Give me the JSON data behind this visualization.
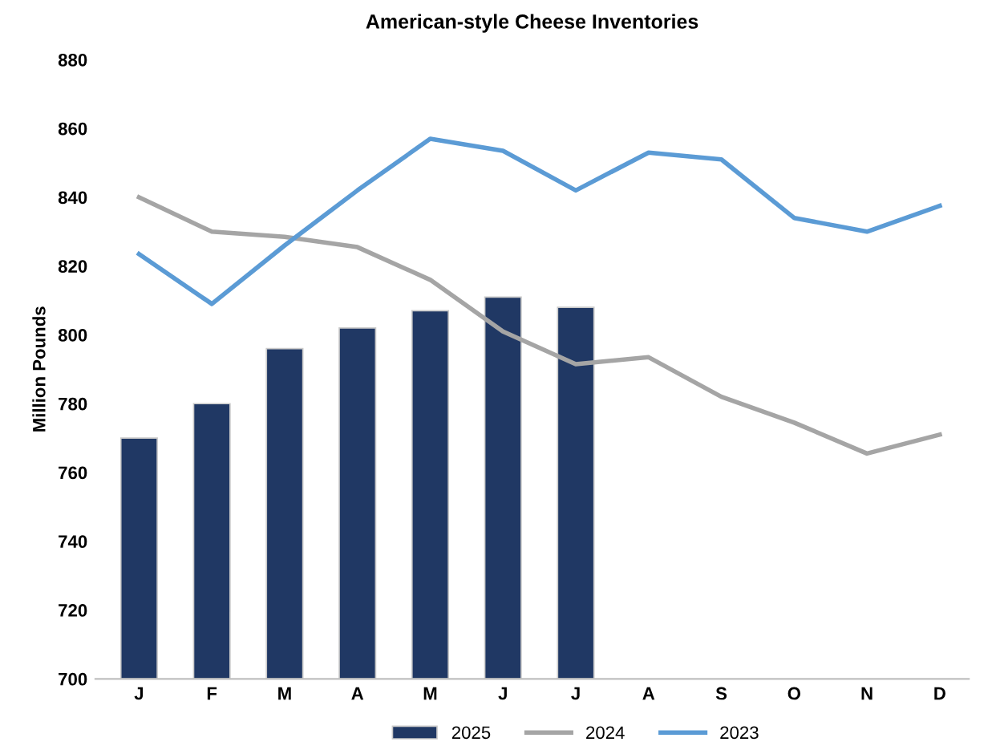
{
  "chart_data": {
    "type": "bar",
    "title": "American-style Cheese Inventories",
    "ylabel": "Million Pounds",
    "categories": [
      "J",
      "F",
      "M",
      "A",
      "M",
      "J",
      "J",
      "A",
      "S",
      "O",
      "N",
      "D"
    ],
    "series": [
      {
        "name": "2025",
        "color": "#203864",
        "values": [
          770,
          780,
          796,
          802,
          807,
          811,
          808,
          null,
          null,
          null,
          null,
          null
        ]
      },
      {
        "name": "2024",
        "type": "line",
        "color": "#a5a5a5",
        "values": [
          840,
          830,
          828.5,
          825.5,
          816,
          801,
          791.5,
          793.5,
          782,
          774.5,
          765.5,
          771
        ]
      },
      {
        "name": "2023",
        "type": "line",
        "color": "#5b9bd5",
        "values": [
          823.5,
          809,
          826,
          842,
          857,
          853.5,
          842,
          853,
          851,
          834,
          830,
          837.5
        ]
      }
    ],
    "ylim": [
      700,
      880
    ],
    "yticks": [
      700,
      720,
      740,
      760,
      780,
      800,
      820,
      840,
      860,
      880
    ],
    "grid": false,
    "legend": "bottom",
    "marker": "none",
    "line_style": "solid"
  }
}
